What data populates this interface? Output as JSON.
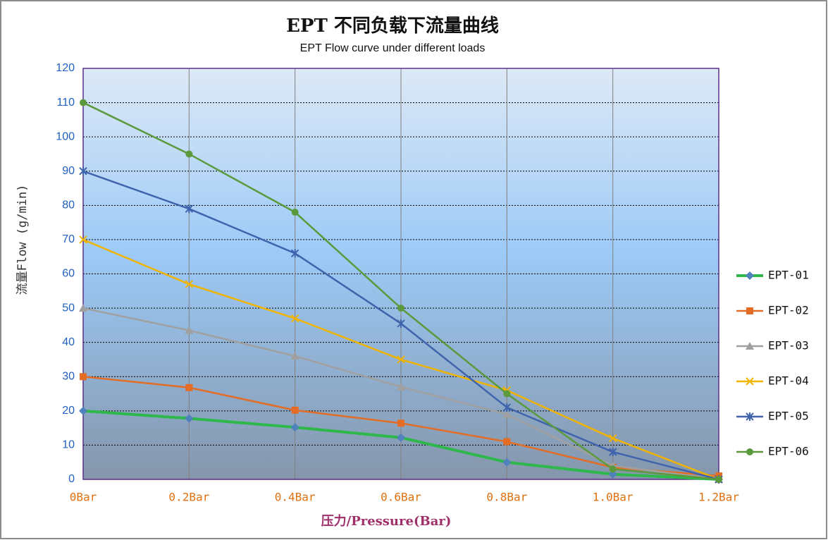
{
  "chart_data": {
    "type": "line",
    "title": "EPT 不同负载下流量曲线",
    "subtitle": "EPT Flow curve under different loads",
    "x_label": "压力/Pressure(Bar)",
    "y_label": "流量Flow (g/min)",
    "categories": [
      "0Bar",
      "0.2Bar",
      "0.4Bar",
      "0.6Bar",
      "0.8Bar",
      "1.0Bar",
      "1.2Bar"
    ],
    "ylim": [
      0,
      120
    ],
    "yticks": [
      0,
      10,
      20,
      30,
      40,
      50,
      60,
      70,
      80,
      90,
      100,
      110,
      120
    ],
    "grid": true,
    "legend": "right",
    "series": [
      {
        "name": "EPT-01",
        "color": "#2eb84b",
        "marker": "diamond",
        "marker_color": "#4f81bd",
        "values": [
          20,
          17.8,
          15.2,
          12.2,
          5,
          1.5,
          0
        ]
      },
      {
        "name": "EPT-02",
        "color": "#e46c24",
        "marker": "square",
        "marker_color": "#e46c24",
        "values": [
          30,
          26.8,
          20.2,
          16.4,
          11,
          3.5,
          1
        ]
      },
      {
        "name": "EPT-03",
        "color": "#a0a0a0",
        "marker": "triangle",
        "marker_color": "#a0a0a0",
        "values": [
          50,
          43.5,
          36,
          27,
          19,
          4,
          0
        ]
      },
      {
        "name": "EPT-04",
        "color": "#f0b400",
        "marker": "x",
        "marker_color": "#f0b400",
        "values": [
          70,
          57,
          47,
          35,
          26,
          12,
          0
        ]
      },
      {
        "name": "EPT-05",
        "color": "#3f64ad",
        "marker": "star",
        "marker_color": "#3f64ad",
        "values": [
          90,
          79,
          66,
          45.5,
          21,
          8,
          0
        ]
      },
      {
        "name": "EPT-06",
        "color": "#5b9a3c",
        "marker": "circle",
        "marker_color": "#5b9a3c",
        "values": [
          110,
          95,
          78,
          50,
          25,
          3,
          0
        ]
      }
    ]
  }
}
